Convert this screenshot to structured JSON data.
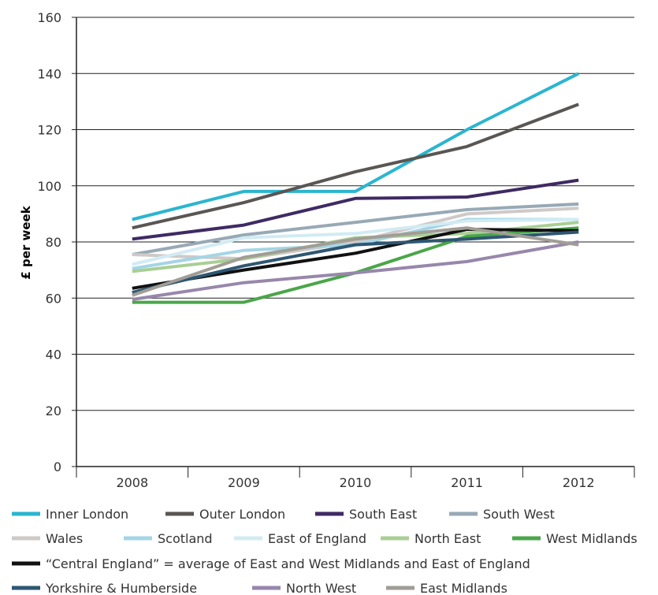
{
  "chart_data": {
    "type": "line",
    "title": "",
    "xlabel": "",
    "ylabel": "£ per week",
    "x": [
      "2008",
      "2009",
      "2010",
      "2011",
      "2012"
    ],
    "ylim": [
      0,
      160
    ],
    "yticks": [
      "0",
      "20",
      "40",
      "60",
      "80",
      "100",
      "120",
      "140",
      "160"
    ],
    "grid": true,
    "legend_position": "bottom",
    "series": [
      {
        "name": "Inner London",
        "color": "#2bb5cf",
        "width": 4,
        "values": [
          88,
          98,
          98,
          120,
          140
        ]
      },
      {
        "name": "Outer London",
        "color": "#595653",
        "width": 4,
        "values": [
          85,
          94,
          105,
          114,
          129
        ]
      },
      {
        "name": "South East",
        "color": "#3f2a63",
        "width": 4,
        "values": [
          81,
          86,
          95.5,
          96,
          102
        ]
      },
      {
        "name": "South West",
        "color": "#98a9b6",
        "width": 4,
        "values": [
          75.5,
          82.5,
          87,
          91.5,
          93.5
        ]
      },
      {
        "name": "Wales",
        "color": "#cfc9c7",
        "width": 4,
        "values": [
          75.5,
          74,
          80,
          90,
          92
        ]
      },
      {
        "name": "Scotland",
        "color": "#a4d5e5",
        "width": 4,
        "values": [
          70.5,
          77,
          79,
          88,
          88
        ]
      },
      {
        "name": "East of England",
        "color": "#d2ebf3",
        "width": 4,
        "values": [
          72,
          81.5,
          83,
          87.5,
          88
        ]
      },
      {
        "name": "North East",
        "color": "#a9cf95",
        "width": 4,
        "values": [
          69.5,
          74,
          81.5,
          83,
          87
        ]
      },
      {
        "name": "West Midlands",
        "color": "#4aa64a",
        "width": 4,
        "values": [
          58.5,
          58.5,
          69,
          82,
          85
        ]
      },
      {
        "name": "“Central England” = average of East and West Midlands and East of England",
        "color": "#111111",
        "width": 4,
        "values": [
          63.5,
          70,
          76,
          84.5,
          84
        ]
      },
      {
        "name": "Yorkshire & Humberside",
        "color": "#2e5772",
        "width": 4,
        "values": [
          62,
          71.5,
          79,
          81,
          83.5
        ]
      },
      {
        "name": "North West",
        "color": "#9887ab",
        "width": 4,
        "values": [
          59.5,
          65.5,
          69,
          73,
          80
        ]
      },
      {
        "name": "East Midlands",
        "color": "#a19d96",
        "width": 4,
        "values": [
          61,
          74.5,
          81,
          85,
          79
        ]
      }
    ]
  }
}
